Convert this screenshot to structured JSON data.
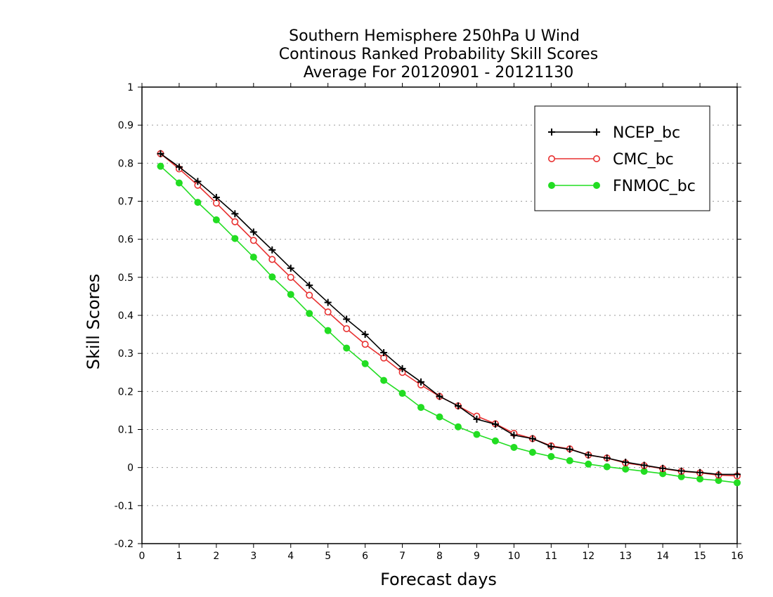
{
  "chart_data": {
    "type": "line",
    "title": [
      "Southern Hemisphere 250hPa U Wind",
      "Continous Ranked Probability Skill Scores",
      "Average For 20120901 - 20121130"
    ],
    "xlabel": "Forecast days",
    "ylabel": "Skill Scores",
    "xlim": [
      0,
      16
    ],
    "ylim": [
      -0.2,
      1
    ],
    "xticks": [
      0,
      1,
      2,
      3,
      4,
      5,
      6,
      7,
      8,
      9,
      10,
      11,
      12,
      13,
      14,
      15,
      16
    ],
    "xtick_labels": [
      "0",
      "1",
      "2",
      "3",
      "4",
      "5",
      "6",
      "7",
      "8",
      "9",
      "10",
      "11",
      "12",
      "13",
      "14",
      "15",
      "16"
    ],
    "yticks": [
      -0.2,
      -0.1,
      0,
      0.1,
      0.2,
      0.3,
      0.4,
      0.5,
      0.6,
      0.7,
      0.8,
      0.9,
      1
    ],
    "ytick_labels": [
      "-0.2",
      "-0.1",
      "0",
      "0.1",
      "0.2",
      "0.3",
      "0.4",
      "0.5",
      "0.6",
      "0.7",
      "0.8",
      "0.9",
      "1"
    ],
    "grid": "horizontal dotted",
    "legend_position": "top-right",
    "x": [
      0.5,
      1,
      1.5,
      2,
      2.5,
      3,
      3.5,
      4,
      4.5,
      5,
      5.5,
      6,
      6.5,
      7,
      7.5,
      8,
      8.5,
      9,
      9.5,
      10,
      10.5,
      11,
      11.5,
      12,
      12.5,
      13,
      13.5,
      14,
      14.5,
      15,
      15.5,
      16
    ],
    "series": [
      {
        "name": "NCEP_bc",
        "color": "#000000",
        "marker": "plus",
        "values": [
          0.825,
          0.79,
          0.752,
          0.71,
          0.667,
          0.619,
          0.572,
          0.524,
          0.479,
          0.434,
          0.39,
          0.35,
          0.302,
          0.26,
          0.225,
          0.187,
          0.162,
          0.127,
          0.114,
          0.085,
          0.076,
          0.055,
          0.048,
          0.033,
          0.025,
          0.014,
          0.006,
          -0.002,
          -0.009,
          -0.013,
          -0.018,
          -0.018
        ]
      },
      {
        "name": "CMC_bc",
        "color": "#e83030",
        "marker": "open-circle",
        "values": [
          0.825,
          0.785,
          0.742,
          0.695,
          0.646,
          0.597,
          0.547,
          0.5,
          0.453,
          0.409,
          0.365,
          0.324,
          0.288,
          0.25,
          0.217,
          0.187,
          0.162,
          0.135,
          0.115,
          0.09,
          0.076,
          0.057,
          0.049,
          0.033,
          0.025,
          0.012,
          0.005,
          -0.003,
          -0.01,
          -0.014,
          -0.02,
          -0.022
        ]
      },
      {
        "name": "FNMOC_bc",
        "color": "#22dd22",
        "marker": "filled-circle",
        "values": [
          0.792,
          0.748,
          0.697,
          0.651,
          0.602,
          0.553,
          0.501,
          0.455,
          0.405,
          0.36,
          0.314,
          0.273,
          0.229,
          0.195,
          0.158,
          0.133,
          0.107,
          0.087,
          0.07,
          0.053,
          0.04,
          0.029,
          0.018,
          0.009,
          0.002,
          -0.004,
          -0.01,
          -0.016,
          -0.024,
          -0.03,
          -0.034,
          -0.04
        ]
      }
    ]
  }
}
